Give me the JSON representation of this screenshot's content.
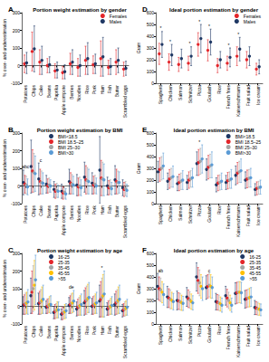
{
  "chart_data": [
    {
      "label": "A",
      "type": "scatter",
      "title": "Portion weight estimation by gender",
      "y_label": "% over- and underestimation",
      "categories": [
        "Potatoes",
        "Chips",
        "Cake",
        "Beans",
        "Paprika",
        "Apple compote",
        "Berries",
        "Noodles",
        "Rice",
        "Pork",
        "Ham",
        "Fish",
        "Butter",
        "Scrambled eggs"
      ],
      "series": [
        {
          "name": "Females",
          "color": "#e3262b",
          "values": [
            10,
            80,
            20,
            0,
            -30,
            -40,
            10,
            -10,
            30,
            5,
            40,
            -10,
            20,
            -20
          ],
          "errors": [
            50,
            110,
            70,
            40,
            40,
            35,
            60,
            50,
            80,
            50,
            100,
            40,
            70,
            40
          ]
        },
        {
          "name": "Males",
          "color": "#1f3864",
          "values": [
            15,
            95,
            30,
            5,
            -25,
            -35,
            20,
            0,
            40,
            10,
            50,
            -5,
            30,
            -15
          ],
          "errors": [
            60,
            130,
            80,
            45,
            45,
            40,
            70,
            60,
            90,
            55,
            110,
            45,
            70,
            40
          ]
        }
      ],
      "ylim": [
        -100,
        300
      ],
      "yticks": [
        -100,
        0,
        100,
        200,
        300
      ],
      "grid": false,
      "legend": "top-right",
      "annotations": []
    },
    {
      "label": "B",
      "type": "scatter",
      "title": "Portion weight estimation by BMI",
      "y_label": "% over- and underestimation",
      "categories": [
        "Potatoes",
        "Chips",
        "Cake",
        "Beans",
        "Paprika",
        "Apple compote",
        "Berries",
        "Noodles",
        "Rice",
        "Pork",
        "Ham",
        "Fish",
        "Butter",
        "Scrambled eggs"
      ],
      "series": [
        {
          "name": "BMI<18.5",
          "color": "#1f3864",
          "values": [
            20,
            110,
            40,
            10,
            -20,
            -30,
            25,
            5,
            50,
            15,
            90,
            0,
            35,
            -10
          ],
          "errors": [
            70,
            150,
            90,
            50,
            45,
            40,
            70,
            60,
            85,
            60,
            190,
            50,
            80,
            45
          ]
        },
        {
          "name": "BMI 18.5–25",
          "color": "#e3262b",
          "values": [
            10,
            85,
            25,
            0,
            -30,
            -40,
            15,
            -5,
            35,
            5,
            45,
            -10,
            25,
            -20
          ],
          "errors": [
            50,
            120,
            70,
            40,
            40,
            35,
            60,
            50,
            80,
            50,
            100,
            40,
            70,
            40
          ]
        },
        {
          "name": "BMI 25–30",
          "color": "#a5a5a5",
          "values": [
            5,
            75,
            20,
            5,
            -25,
            -35,
            10,
            0,
            30,
            10,
            40,
            -5,
            20,
            -15
          ],
          "errors": [
            50,
            110,
            65,
            40,
            40,
            35,
            55,
            50,
            75,
            50,
            95,
            40,
            65,
            40
          ]
        },
        {
          "name": "BMI>30",
          "color": "#5b9bd5",
          "values": [
            -5,
            70,
            15,
            0,
            -30,
            -45,
            5,
            -10,
            25,
            0,
            35,
            -15,
            20,
            -25
          ],
          "errors": [
            45,
            100,
            60,
            35,
            35,
            30,
            50,
            45,
            70,
            45,
            90,
            35,
            60,
            35
          ]
        }
      ],
      "ylim": [
        -100,
        300
      ],
      "yticks": [
        -100,
        0,
        100,
        200,
        300
      ],
      "grid": false,
      "legend": "top",
      "annotations": [
        {
          "category": "Potatoes",
          "text": "abc"
        },
        {
          "category": "Cake",
          "text": "c"
        }
      ]
    },
    {
      "label": "C",
      "type": "scatter",
      "title": "Portion weight estimation by age",
      "y_label": "% over- and underestimation",
      "categories": [
        "Potatoes",
        "Chips",
        "Cake",
        "Beans",
        "Paprika",
        "Apple compote",
        "Berries",
        "Noodles",
        "Rice",
        "Pork",
        "Ham",
        "Fish",
        "Butter",
        "Scrambled eggs"
      ],
      "series": [
        {
          "name": "16-25",
          "color": "#1f3864",
          "values": [
            5,
            60,
            15,
            -5,
            -35,
            -45,
            5,
            -15,
            20,
            0,
            30,
            -15,
            10,
            -25
          ],
          "errors": [
            50,
            100,
            60,
            35,
            35,
            30,
            45,
            40,
            70,
            45,
            90,
            35,
            60,
            35
          ]
        },
        {
          "name": "25-35",
          "color": "#e3262b",
          "values": [
            10,
            80,
            20,
            0,
            -30,
            -40,
            10,
            -5,
            30,
            5,
            40,
            -10,
            20,
            -20
          ],
          "errors": [
            55,
            120,
            65,
            40,
            40,
            35,
            50,
            45,
            75,
            50,
            100,
            40,
            65,
            35
          ]
        },
        {
          "name": "35-45",
          "color": "#a5a5a5",
          "values": [
            15,
            100,
            25,
            5,
            -25,
            -35,
            15,
            0,
            35,
            10,
            50,
            -5,
            25,
            -15
          ],
          "errors": [
            60,
            130,
            70,
            40,
            40,
            35,
            55,
            50,
            80,
            50,
            110,
            40,
            70,
            40
          ]
        },
        {
          "name": "45-55",
          "color": "#ffc000",
          "values": [
            20,
            120,
            35,
            10,
            -20,
            -30,
            20,
            5,
            45,
            15,
            60,
            0,
            35,
            -10
          ],
          "errors": [
            60,
            140,
            75,
            45,
            45,
            40,
            55,
            55,
            80,
            55,
            120,
            45,
            75,
            40
          ]
        },
        {
          "name": ">55",
          "color": "#5b9bd5",
          "values": [
            25,
            150,
            40,
            10,
            -20,
            -25,
            30,
            10,
            50,
            20,
            70,
            5,
            40,
            -5
          ],
          "errors": [
            70,
            140,
            80,
            50,
            45,
            40,
            60,
            60,
            85,
            60,
            130,
            50,
            80,
            45
          ]
        }
      ],
      "ylim": [
        -100,
        300
      ],
      "yticks": [
        -100,
        0,
        100,
        200,
        300
      ],
      "grid": false,
      "legend": "top",
      "annotations": [
        {
          "category": "Berries",
          "text": "de"
        },
        {
          "category": "Ham",
          "text": "*"
        }
      ]
    },
    {
      "label": "D",
      "type": "scatter",
      "title": "Ideal portion estimation by gender",
      "y_label": "Gram",
      "categories": [
        "Spaghetti",
        "Chicken",
        "Salmon",
        "Schnitzel",
        "Pizza",
        "Goulash",
        "Rice",
        "French fries",
        "Kaiserschmarrn",
        "Fruit salad",
        "Ice cream"
      ],
      "series": [
        {
          "name": "Females",
          "color": "#e3262b",
          "values": [
            250,
            180,
            160,
            170,
            330,
            280,
            150,
            170,
            230,
            200,
            120
          ],
          "errors": [
            90,
            70,
            60,
            60,
            100,
            90,
            60,
            60,
            80,
            70,
            50
          ]
        },
        {
          "name": "Males",
          "color": "#1f3864",
          "values": [
            330,
            240,
            210,
            230,
            380,
            350,
            200,
            220,
            290,
            230,
            140
          ],
          "errors": [
            110,
            90,
            80,
            80,
            120,
            110,
            70,
            80,
            100,
            80,
            60
          ]
        }
      ],
      "ylim": [
        0,
        600
      ],
      "yticks": [
        0,
        100,
        200,
        300,
        400,
        500,
        600
      ],
      "grid": false,
      "legend": "top-right",
      "annotations": [
        {
          "category": "Spaghetti",
          "text": "*"
        },
        {
          "category": "Chicken",
          "text": "*"
        },
        {
          "category": "Schnitzel",
          "text": "*"
        },
        {
          "category": "Pizza",
          "text": "*"
        },
        {
          "category": "Goulash",
          "text": "*"
        },
        {
          "category": "French fries",
          "text": "*"
        },
        {
          "category": "Kaiserschmarrn",
          "text": "*"
        }
      ]
    },
    {
      "label": "E",
      "type": "scatter",
      "title": "Ideal portion estimation by BMI",
      "y_label": "Gram",
      "categories": [
        "Spaghetti",
        "Chicken",
        "Salmon",
        "Schnitzel",
        "Pizza",
        "Goulash",
        "Rice",
        "French fries",
        "Kaiserschmarrn",
        "Fruit salad",
        "Ice cream"
      ],
      "series": [
        {
          "name": "BMI<18.5",
          "color": "#1f3864",
          "values": [
            270,
            190,
            170,
            180,
            340,
            290,
            160,
            180,
            240,
            200,
            120
          ],
          "errors": [
            90,
            70,
            60,
            60,
            100,
            90,
            60,
            60,
            80,
            70,
            50
          ]
        },
        {
          "name": "BMI 18.5–25",
          "color": "#e3262b",
          "values": [
            290,
            210,
            180,
            200,
            350,
            310,
            175,
            195,
            260,
            210,
            130
          ],
          "errors": [
            100,
            80,
            70,
            70,
            110,
            100,
            65,
            70,
            90,
            75,
            55
          ]
        },
        {
          "name": "BMI 25–30",
          "color": "#a5a5a5",
          "values": [
            300,
            220,
            190,
            210,
            360,
            320,
            180,
            200,
            270,
            215,
            135
          ],
          "errors": [
            100,
            80,
            70,
            70,
            110,
            100,
            65,
            70,
            90,
            75,
            55
          ]
        },
        {
          "name": "BMI>30",
          "color": "#5b9bd5",
          "values": [
            320,
            230,
            200,
            220,
            380,
            330,
            190,
            210,
            280,
            220,
            140
          ],
          "errors": [
            110,
            90,
            80,
            80,
            120,
            110,
            70,
            80,
            100,
            80,
            60
          ]
        }
      ],
      "ylim": [
        0,
        600
      ],
      "yticks": [
        0,
        100,
        200,
        300,
        400,
        500,
        600
      ],
      "grid": false,
      "legend": "top-right",
      "annotations": [
        {
          "category": "Pizza",
          "text": "*"
        }
      ]
    },
    {
      "label": "F",
      "type": "scatter",
      "title": "Ideal portion estimation by age",
      "y_label": "Gram",
      "categories": [
        "Spaghetti",
        "Chicken",
        "Salmon",
        "Schnitzel",
        "Pizza",
        "Goulash",
        "Rice",
        "French fries",
        "Kaiserschmarrn",
        "Fruit salad",
        "Ice cream"
      ],
      "series": [
        {
          "name": "16-25",
          "color": "#1f3864",
          "values": [
            320,
            230,
            200,
            230,
            400,
            310,
            190,
            240,
            260,
            210,
            140
          ],
          "errors": [
            110,
            90,
            80,
            80,
            120,
            100,
            70,
            80,
            90,
            75,
            60
          ]
        },
        {
          "name": "25-35",
          "color": "#e3262b",
          "values": [
            300,
            220,
            195,
            215,
            370,
            320,
            185,
            220,
            265,
            215,
            135
          ],
          "errors": [
            100,
            80,
            70,
            75,
            110,
            100,
            65,
            75,
            90,
            75,
            55
          ]
        },
        {
          "name": "35-45",
          "color": "#a5a5a5",
          "values": [
            290,
            210,
            190,
            205,
            350,
            330,
            180,
            200,
            270,
            220,
            130
          ],
          "errors": [
            100,
            80,
            70,
            70,
            110,
            100,
            65,
            70,
            90,
            75,
            55
          ]
        },
        {
          "name": "45-55",
          "color": "#ffc000",
          "values": [
            270,
            200,
            180,
            190,
            320,
            320,
            170,
            180,
            270,
            225,
            125
          ],
          "errors": [
            90,
            70,
            65,
            65,
            100,
            100,
            60,
            65,
            90,
            80,
            50
          ]
        },
        {
          "name": ">55",
          "color": "#5b9bd5",
          "values": [
            250,
            190,
            175,
            180,
            300,
            310,
            160,
            160,
            265,
            230,
            120
          ],
          "errors": [
            90,
            70,
            60,
            60,
            100,
            90,
            60,
            60,
            90,
            80,
            50
          ]
        }
      ],
      "ylim": [
        0,
        600
      ],
      "yticks": [
        0,
        100,
        200,
        300,
        400,
        500,
        600
      ],
      "grid": false,
      "legend": "top-right",
      "annotations": [
        {
          "category": "Spaghetti",
          "text": "ab"
        },
        {
          "category": "Goulash",
          "text": "c"
        }
      ]
    }
  ]
}
